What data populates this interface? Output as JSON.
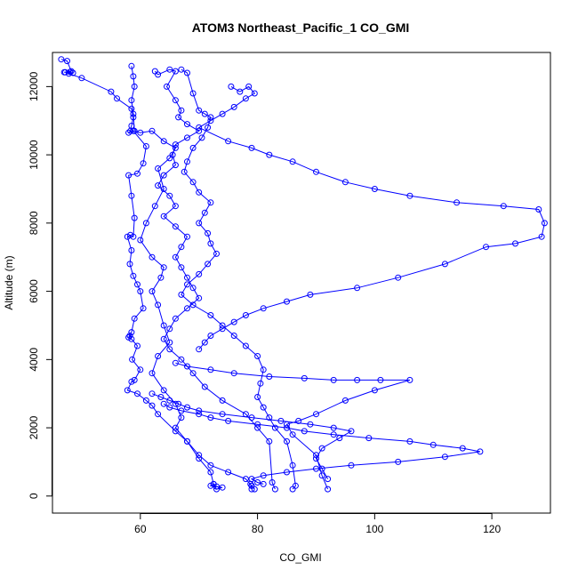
{
  "chart_data": {
    "type": "line",
    "title": "ATOM3 Northeast_Pacific_1 CO_GMI",
    "xlabel": "CO_GMI",
    "ylabel": "Altitude (m)",
    "xlim": [
      45,
      130
    ],
    "ylim": [
      -500,
      13000
    ],
    "xticks": [
      60,
      80,
      100,
      120
    ],
    "yticks": [
      0,
      2000,
      4000,
      6000,
      8000,
      10000,
      12000
    ],
    "grid": false,
    "series_color": "#0000ff",
    "series": [
      {
        "x": [
          46.5,
          47.5,
          48.2,
          47.0,
          48.5,
          47.2,
          48.0,
          47.8,
          50.0,
          55.0,
          56.0,
          58.5,
          58.8,
          58.5,
          58.3,
          58.0,
          58.8,
          61.0,
          60.5,
          59.5,
          58.0,
          58.5,
          59.0,
          58.8,
          58.3,
          57.8,
          58.5,
          58.2,
          58.8,
          59.5,
          60.0,
          60.5,
          59.0,
          58.5,
          58.0,
          58.2,
          58.5,
          59.5,
          58.6,
          60.0,
          59.0,
          58.5,
          57.8,
          59.5,
          61.0,
          62.0,
          63.0,
          66.0,
          68.0,
          70.0,
          72.0,
          72.5,
          73.0,
          74.0,
          72.0,
          72.5,
          73.0
        ],
        "y": [
          12800,
          12750,
          12450,
          12420,
          12400,
          12420,
          12430,
          12380,
          12250,
          11850,
          11650,
          11350,
          11100,
          10850,
          10700,
          10650,
          10700,
          10250,
          9750,
          9450,
          9400,
          8800,
          8150,
          7600,
          7650,
          7600,
          7200,
          6800,
          6450,
          6200,
          6000,
          5500,
          5200,
          4800,
          4650,
          4700,
          4600,
          4400,
          4000,
          3700,
          3400,
          3350,
          3100,
          3000,
          2800,
          2650,
          2400,
          1900,
          1600,
          1100,
          700,
          350,
          200,
          250,
          300,
          350,
          280
        ]
      },
      {
        "x": [
          58.5,
          58.8,
          59.0,
          58.5,
          58.8,
          59.0,
          60.0,
          62.0,
          64.0,
          66.0,
          65.0,
          63.0,
          64.0,
          62.5,
          61.0,
          60.0,
          62.0,
          64.0,
          63.5,
          62.0,
          63.0,
          64.0,
          65.0,
          63.0,
          62.0,
          64.0,
          66.0,
          67.0,
          66.0,
          68.0,
          70.0,
          72.0,
          75.0,
          78.0,
          79.0,
          79.5,
          79.0,
          78.8,
          79.0
        ],
        "y": [
          12600,
          12300,
          12000,
          11600,
          11200,
          10700,
          10650,
          10700,
          10400,
          10200,
          9900,
          9600,
          9000,
          8500,
          8000,
          7500,
          7000,
          6700,
          6400,
          6000,
          5600,
          5000,
          4500,
          4100,
          3600,
          3100,
          2700,
          2300,
          2000,
          1600,
          1200,
          900,
          700,
          500,
          300,
          200,
          300,
          350,
          200
        ]
      },
      {
        "x": [
          62.5,
          63.0,
          65.0,
          66.0,
          64.5,
          66.0,
          67.0,
          66.5,
          68.0,
          70.0,
          68.0,
          66.0,
          65.5,
          66.0,
          64.0,
          63.0,
          65.0,
          66.0,
          64.0,
          66.0,
          68.0,
          67.0,
          66.0,
          67.0,
          68.0,
          69.0,
          70.0,
          68.0,
          66.0,
          65.0,
          64.0,
          65.0,
          67.0,
          69.0,
          71.0,
          74.0,
          78.0,
          80.0,
          82.0,
          82.5,
          83.0
        ],
        "y": [
          12450,
          12350,
          12500,
          12450,
          12000,
          11600,
          11300,
          11100,
          10900,
          10700,
          10500,
          10300,
          10000,
          9700,
          9400,
          9100,
          8800,
          8500,
          8200,
          7900,
          7600,
          7300,
          7000,
          6700,
          6400,
          6100,
          5800,
          5500,
          5200,
          4900,
          4600,
          4300,
          4000,
          3600,
          3200,
          2800,
          2400,
          2000,
          1600,
          400,
          200
        ]
      },
      {
        "x": [
          67.0,
          68.0,
          69.0,
          70.0,
          71.0,
          72.0,
          71.5,
          70.5,
          69.0,
          68.0,
          67.5,
          69.0,
          70.0,
          72.0,
          71.0,
          70.0,
          71.5,
          72.0,
          73.0,
          71.5,
          70.0,
          68.0,
          67.0,
          69.0,
          72.0,
          74.0,
          76.0,
          78.0,
          80.0,
          81.0,
          80.5,
          80.0,
          81.0,
          82.0,
          83.0,
          85.0,
          86.0,
          86.5,
          86.0
        ],
        "y": [
          12500,
          12400,
          11800,
          11300,
          11200,
          11100,
          10800,
          10500,
          10200,
          9800,
          9500,
          9200,
          8900,
          8600,
          8300,
          8000,
          7700,
          7400,
          7100,
          6800,
          6500,
          6200,
          5900,
          5600,
          5300,
          5000,
          4700,
          4400,
          4100,
          3700,
          3300,
          2900,
          2600,
          2300,
          2000,
          1600,
          900,
          300,
          200
        ]
      },
      {
        "x": [
          75.5,
          77.0,
          78.5,
          79.5,
          78.0,
          76.0,
          74.0,
          72.0,
          70.0,
          75.0,
          79.0,
          82.0,
          86.0,
          90.0,
          95.0,
          100.0,
          106.0,
          114.0,
          122.0,
          128.0,
          129.0,
          128.5,
          124.0,
          119.0,
          112.0,
          104.0,
          97.0,
          89.0,
          85.0,
          81.0,
          78.0,
          76.0,
          74.0,
          72.0,
          71.0,
          70.0
        ],
        "y": [
          12000,
          11850,
          12000,
          11800,
          11650,
          11400,
          11200,
          11000,
          10800,
          10400,
          10200,
          10000,
          9800,
          9500,
          9200,
          9000,
          8800,
          8600,
          8500,
          8400,
          8000,
          7600,
          7400,
          7300,
          6800,
          6400,
          6100,
          5900,
          5700,
          5500,
          5300,
          5100,
          4900,
          4700,
          4500,
          4300
        ]
      },
      {
        "x": [
          64.0,
          65.0,
          67.0,
          70.0,
          72.0,
          75.0,
          80.0,
          85.0,
          88.0,
          93.0,
          99.0,
          106.0,
          110.0,
          115.0,
          118.0,
          112.0,
          104.0,
          96.0,
          90.0,
          85.0,
          81.0,
          79.0,
          80.0,
          81.0
        ],
        "y": [
          2700,
          2600,
          2500,
          2400,
          2300,
          2200,
          2100,
          2000,
          1900,
          1800,
          1700,
          1600,
          1500,
          1400,
          1300,
          1150,
          1000,
          900,
          800,
          700,
          600,
          500,
          400,
          350
        ]
      },
      {
        "x": [
          66.0,
          68.0,
          72.0,
          76.0,
          82.0,
          88.0,
          93.0,
          97.0,
          101.0,
          106.0,
          100.0,
          95.0,
          90.0,
          87.0,
          85.0,
          86.0,
          90.0,
          91.0,
          92.0
        ],
        "y": [
          3900,
          3800,
          3700,
          3600,
          3500,
          3450,
          3400,
          3400,
          3400,
          3400,
          3100,
          2800,
          2400,
          2200,
          2100,
          1800,
          1200,
          600,
          200
        ]
      },
      {
        "x": [
          62.0,
          63.5,
          65.0,
          66.5,
          68.0,
          70.0,
          74.0,
          79.0,
          84.0,
          89.0,
          93.0,
          96.0,
          94.0,
          91.0,
          90.0,
          91.0,
          92.0
        ],
        "y": [
          3000,
          2900,
          2800,
          2700,
          2600,
          2500,
          2400,
          2300,
          2200,
          2100,
          2000,
          1900,
          1700,
          1400,
          1100,
          800,
          500
        ]
      }
    ]
  }
}
